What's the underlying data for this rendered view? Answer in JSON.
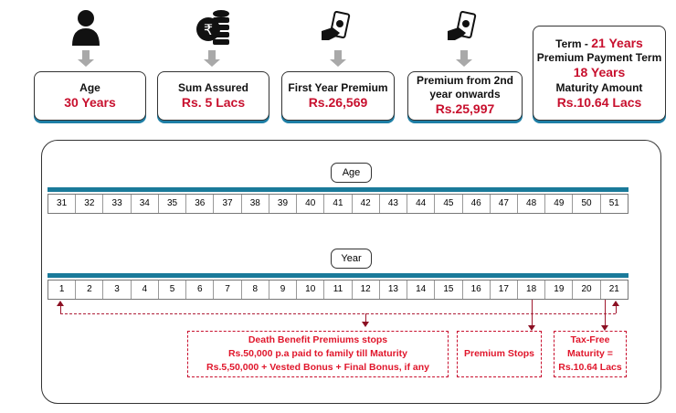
{
  "summary": [
    {
      "icon": "person-icon",
      "title": "Age",
      "value": "30 Years"
    },
    {
      "icon": "rupee-coins-icon",
      "title": "Sum Assured",
      "value": "Rs. 5 Lacs"
    },
    {
      "icon": "hand-money-icon",
      "title": "First Year Premium",
      "value": "Rs.26,569"
    },
    {
      "icon": "hand-money-icon",
      "title": "Premium from 2nd year onwards",
      "value": "Rs.25,997"
    }
  ],
  "term": {
    "term_label": "Term  - ",
    "term_value": "21 Years",
    "ppt_label": "Premium Payment Term",
    "ppt_value": "18 Years",
    "maturity_label": "Maturity Amount",
    "maturity_value": "Rs.10.64 Lacs"
  },
  "timeline": {
    "age_label": "Age",
    "ages": [
      "31",
      "32",
      "33",
      "34",
      "35",
      "36",
      "37",
      "38",
      "39",
      "40",
      "41",
      "42",
      "43",
      "44",
      "45",
      "46",
      "47",
      "48",
      "49",
      "50",
      "51"
    ],
    "year_label": "Year",
    "years": [
      "1",
      "2",
      "3",
      "4",
      "5",
      "6",
      "7",
      "8",
      "9",
      "10",
      "11",
      "12",
      "13",
      "14",
      "15",
      "16",
      "17",
      "18",
      "19",
      "20",
      "21"
    ],
    "accent": "#1a7a9a"
  },
  "notes": {
    "death": [
      "Death Benefit Premiums stops",
      "Rs.50,000 p.a paid to family till Maturity",
      "Rs.5,50,000 + Vested Bonus + Final Bonus, if any"
    ],
    "premium_stops": "Premium Stops",
    "maturity": [
      "Tax-Free",
      "Maturity =",
      "Rs.10.64 Lacs"
    ]
  }
}
